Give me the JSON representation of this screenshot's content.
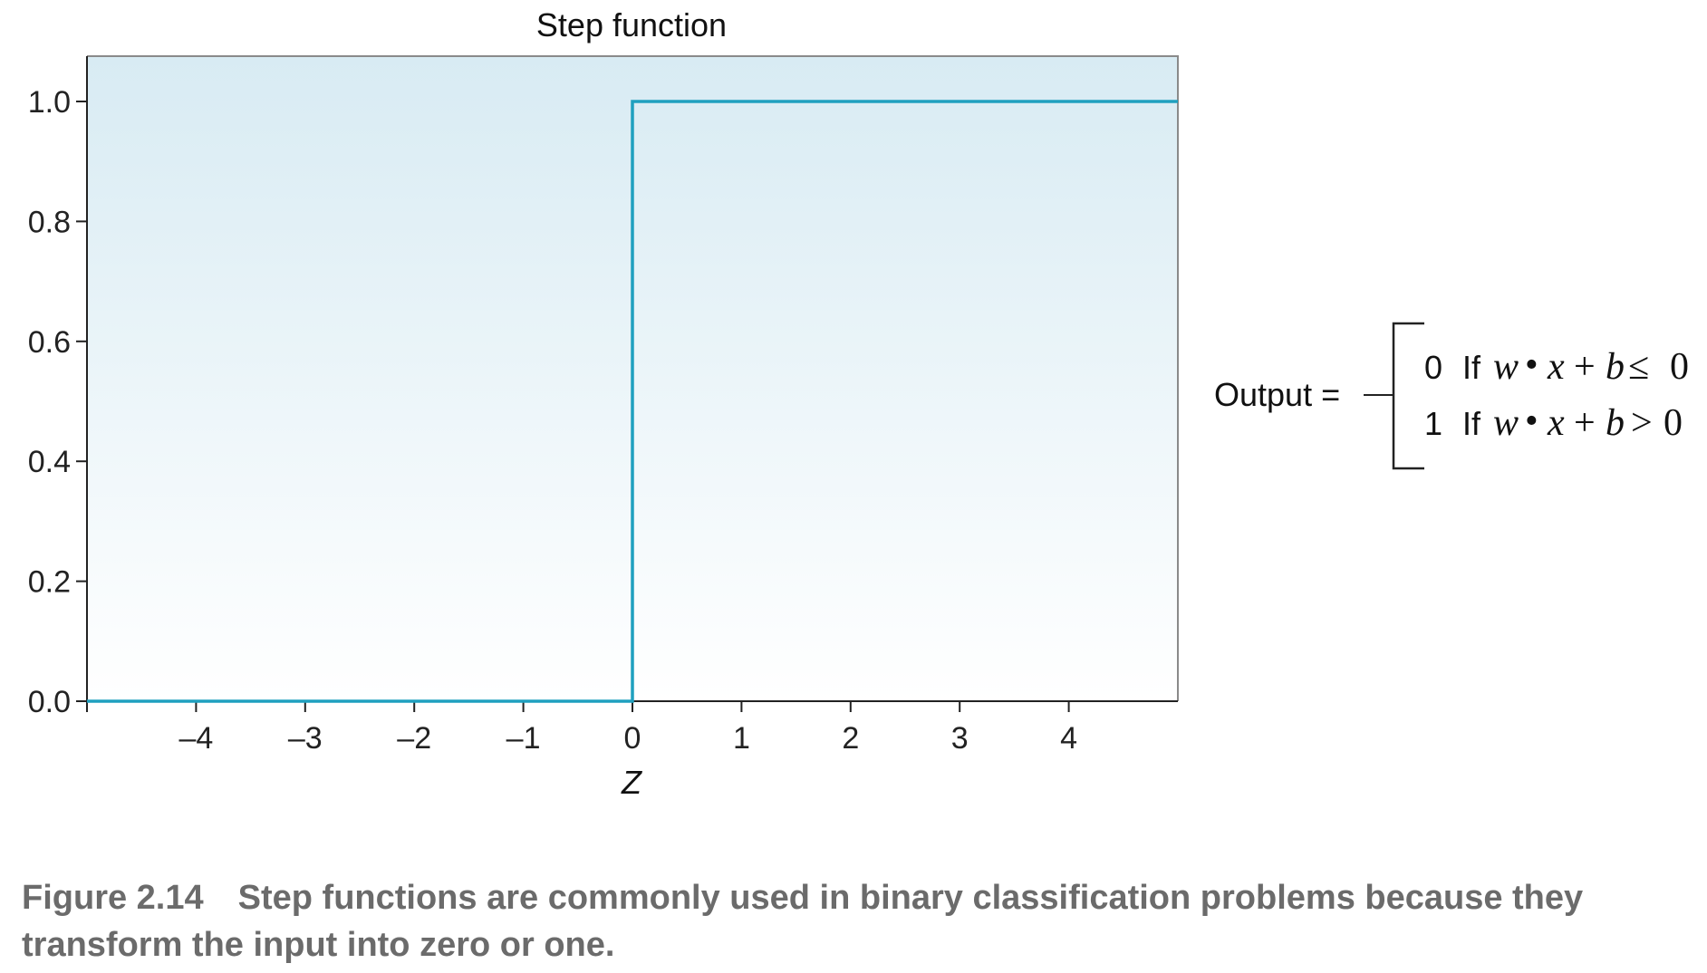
{
  "chart_data": {
    "type": "line",
    "title": "Step function",
    "xlabel": "Z",
    "ylabel": "",
    "xlim": [
      -5,
      5
    ],
    "ylim": [
      0,
      1.08
    ],
    "x_ticks": [
      -4,
      -3,
      -2,
      -1,
      0,
      1,
      2,
      3,
      4
    ],
    "x_tick_labels": [
      "–4",
      "–3",
      "–2",
      "–1",
      "0",
      "1",
      "2",
      "3",
      "4"
    ],
    "y_ticks": [
      0.0,
      0.2,
      0.4,
      0.6,
      0.8,
      1.0
    ],
    "y_tick_labels": [
      "0.0",
      "0.2",
      "0.4",
      "0.6",
      "0.8",
      "1.0"
    ],
    "grid": false,
    "series": [
      {
        "x": [
          -5,
          0,
          0,
          5
        ],
        "y": [
          0,
          0,
          1,
          1
        ]
      }
    ],
    "colors": {
      "line": "#1fa0bf",
      "background_top": "#dbedf4",
      "background_bottom": "#ffffff",
      "frame": "#888888"
    }
  },
  "formula": {
    "lhs": "Output =",
    "cases": [
      {
        "value": "0",
        "word": "If",
        "w": "w",
        "dot": "•",
        "x": "x",
        "plus": "+",
        "b": "b",
        "rel": "≤",
        "rhs": "0"
      },
      {
        "value": "1",
        "word": "If",
        "w": "w",
        "dot": "•",
        "x": "x",
        "plus": "+",
        "b": "b",
        "rel": ">",
        "rhs": "0"
      }
    ]
  },
  "caption": {
    "figure": "Figure 2.14",
    "text": "Step functions are commonly used in binary classification problems because they transform the input into zero or one."
  }
}
